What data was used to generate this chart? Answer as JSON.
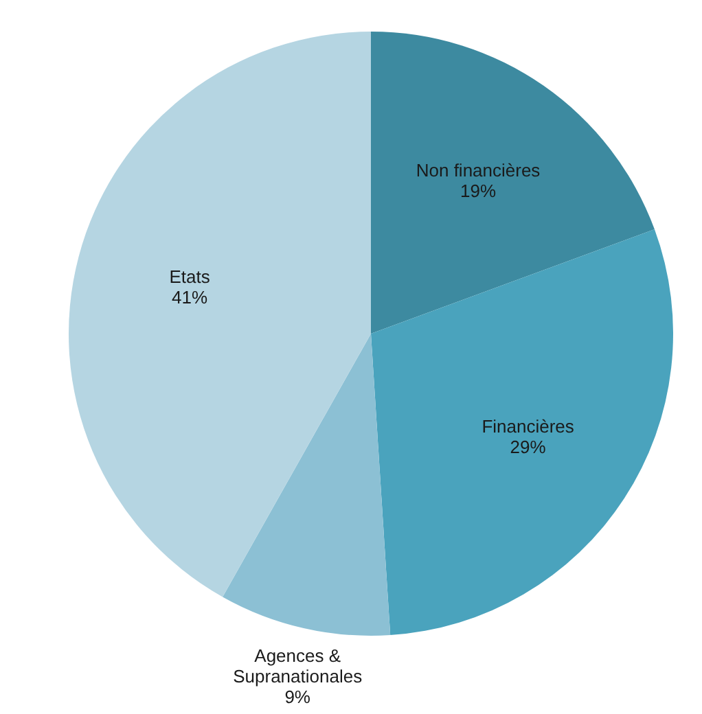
{
  "chart_data": {
    "type": "pie",
    "categories": [
      "Non financières",
      "Financières",
      "Agences & Supranationales",
      "Etats"
    ],
    "values": [
      19,
      29,
      9,
      41
    ],
    "colors": [
      "#3d8aa0",
      "#4aa3bd",
      "#8cc0d4",
      "#b5d5e2"
    ],
    "value_labels": [
      "19%",
      "29%",
      "9%",
      "41%"
    ],
    "legend": false
  }
}
